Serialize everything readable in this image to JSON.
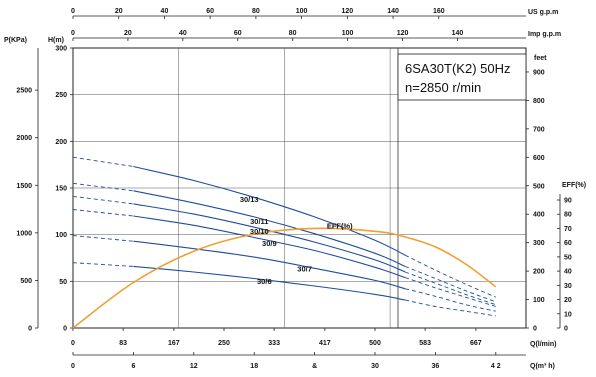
{
  "chart_data": {
    "type": "line",
    "title_line1": "6SA30T(K2) 50Hz",
    "title_line2": "n=2850 r/min",
    "axes": {
      "us_gpm": {
        "label": "US g.p.m",
        "ticks": [
          "0",
          "20",
          "40",
          "60",
          "80",
          "100",
          "120",
          "140",
          "160"
        ],
        "values": [
          0,
          20,
          40,
          60,
          80,
          100,
          120,
          140,
          160
        ]
      },
      "imp_gpm": {
        "label": "Imp g.p.m",
        "ticks": [
          "0",
          "20",
          "40",
          "60",
          "80",
          "100",
          "120",
          "140"
        ],
        "values": [
          0,
          20,
          40,
          60,
          80,
          100,
          120,
          140
        ]
      },
      "q_lmin": {
        "label": "Q(l/min)",
        "ticks": [
          "0",
          "83",
          "167",
          "250",
          "333",
          "417",
          "500",
          "583",
          "667"
        ],
        "values": [
          0,
          83,
          167,
          250,
          333,
          417,
          500,
          583,
          667
        ]
      },
      "q_m3h": {
        "label": "Q(m³ h)",
        "ticks": [
          "0",
          "6",
          "12",
          "18",
          "24",
          "30",
          "36",
          "42"
        ],
        "tick_texts": [
          "0",
          "6",
          "12",
          "18",
          "&",
          "30",
          "36",
          "4 2"
        ],
        "values": [
          0,
          6,
          12,
          18,
          24,
          30,
          36,
          42
        ]
      },
      "pressure": {
        "label": "P(KPa)",
        "ticks": [
          "0",
          "500",
          "1000",
          "1500",
          "2000",
          "2500"
        ],
        "values": [
          0,
          500,
          1000,
          1500,
          2000,
          2500
        ]
      },
      "head_m": {
        "label": "H(m)",
        "ticks": [
          "0",
          "50",
          "100",
          "150",
          "200",
          "250",
          "300"
        ],
        "values": [
          0,
          50,
          100,
          150,
          200,
          250,
          300
        ],
        "ylim": [
          0,
          300
        ]
      },
      "feet": {
        "label": "feet",
        "ticks": [
          "0",
          "100",
          "200",
          "300",
          "400",
          "500",
          "600",
          "700",
          "800",
          "900"
        ],
        "values": [
          0,
          100,
          200,
          300,
          400,
          500,
          600,
          700,
          800,
          900
        ]
      },
      "eff": {
        "label": "EFF(%)",
        "ticks": [
          "0",
          "10",
          "20",
          "30",
          "40",
          "50",
          "60",
          "70",
          "80",
          "90"
        ],
        "tick_texts": [
          "0",
          "10",
          "20",
          "30",
          "40",
          "50",
          "60",
          "70",
          "80",
          "90"
        ],
        "values": [
          0,
          10,
          20,
          30,
          40,
          50,
          60,
          70,
          80,
          90
        ]
      }
    },
    "xlim_m3h": [
      0,
      45
    ],
    "series": [
      {
        "name": "30/13",
        "x": [
          0,
          6,
          12,
          18,
          24,
          30,
          33,
          36,
          39,
          42
        ],
        "y": [
          183,
          173,
          158,
          140,
          119,
          94,
          78,
          62,
          47,
          33
        ]
      },
      {
        "name": "30/11",
        "x": [
          0,
          6,
          12,
          18,
          24,
          30,
          33,
          36,
          39,
          42
        ],
        "y": [
          155,
          147,
          134,
          119,
          101,
          80,
          66,
          53,
          40,
          28
        ]
      },
      {
        "name": "30/10",
        "x": [
          0,
          6,
          12,
          18,
          24,
          30,
          33,
          36,
          39,
          42
        ],
        "y": [
          141,
          133,
          122,
          108,
          92,
          73,
          60,
          48,
          36,
          25
        ]
      },
      {
        "name": "30/9",
        "x": [
          0,
          6,
          12,
          18,
          24,
          30,
          33,
          36,
          39,
          42
        ],
        "y": [
          127,
          120,
          110,
          97,
          83,
          65,
          54,
          43,
          33,
          23
        ]
      },
      {
        "name": "30/7",
        "x": [
          0,
          6,
          12,
          18,
          24,
          30,
          33,
          36,
          39,
          42
        ],
        "y": [
          99,
          93,
          85,
          76,
          64,
          51,
          42,
          34,
          25,
          18
        ]
      },
      {
        "name": "30/6",
        "x": [
          0,
          6,
          12,
          18,
          24,
          30,
          33,
          36,
          39,
          42
        ],
        "y": [
          70,
          66,
          60,
          53,
          45,
          36,
          30,
          23,
          18,
          13
        ]
      }
    ],
    "efficiency": {
      "name": "EFF(%)",
      "x": [
        0,
        6,
        12,
        18,
        24,
        30,
        33,
        36,
        39,
        42
      ],
      "y": [
        0,
        32,
        54,
        66,
        70,
        68,
        64,
        57,
        45,
        29
      ]
    },
    "grid": true
  }
}
